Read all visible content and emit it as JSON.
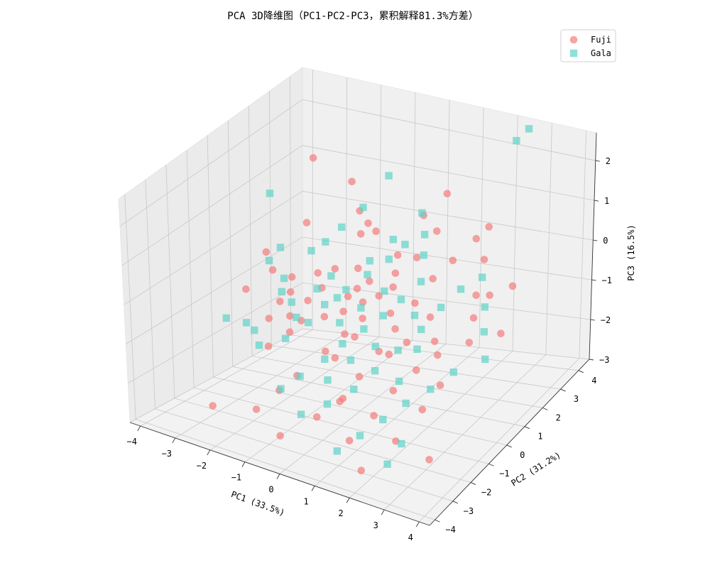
{
  "chart_data": {
    "type": "scatter",
    "projection": "3d",
    "title": "PCA 3D降维图（PC1-PC2-PC3，累积解释81.3%方差）",
    "xlabel": "PC1 (33.5%)",
    "ylabel": "PC2 (31.2%)",
    "zlabel": "PC3 (16.5%)",
    "xlim": [
      -4.3,
      4.3
    ],
    "ylim": [
      -4.3,
      4.6
    ],
    "zlim": [
      -3.0,
      2.7
    ],
    "xticks": [
      "−4",
      "−3",
      "−2",
      "−1",
      "0",
      "1",
      "2",
      "3",
      "4"
    ],
    "yticks": [
      "−4",
      "−3",
      "−2",
      "−1",
      "0",
      "1",
      "2",
      "3",
      "4"
    ],
    "zticks": [
      "−3",
      "−2",
      "−1",
      "0",
      "1",
      "2"
    ],
    "grid": true,
    "legend_position": "top-right",
    "series": [
      {
        "name": "Fuji",
        "marker": "circle",
        "color": "#f47c7c",
        "points": [
          [
            -2.8,
            2.6,
            1.6
          ],
          [
            -1.5,
            2.3,
            1.4
          ],
          [
            -0.8,
            1.9,
            0.7
          ],
          [
            -0.9,
            1.7,
            0.5
          ],
          [
            -0.7,
            1.2,
            -0.1
          ],
          [
            -1.7,
            0.9,
            -0.3
          ],
          [
            -2.3,
            1.4,
            0.6
          ],
          [
            -2.4,
            0.8,
            -0.5
          ],
          [
            -1.8,
            -0.4,
            -1.3
          ],
          [
            -0.5,
            0.8,
            -0.4
          ],
          [
            -3.4,
            0.2,
            -0.8
          ],
          [
            -3.2,
            0.9,
            -0.1
          ],
          [
            -2.9,
            0.7,
            -0.4
          ],
          [
            -2.3,
            0.0,
            -0.8
          ],
          [
            -2.4,
            -0.4,
            -1.1
          ],
          [
            -1.9,
            -0.2,
            -1.0
          ],
          [
            -2.2,
            -0.8,
            -1.6
          ],
          [
            -1.4,
            -0.5,
            -0.9
          ],
          [
            -1.6,
            0.2,
            -0.7
          ],
          [
            -2.1,
            0.2,
            -0.6
          ],
          [
            -1.3,
            0.4,
            -0.4
          ],
          [
            -0.9,
            -0.2,
            -0.8
          ],
          [
            -1.2,
            0.9,
            -0.1
          ],
          [
            -0.6,
            0.5,
            -0.5
          ],
          [
            -0.2,
            0.9,
            -0.2
          ],
          [
            0.4,
            1.3,
            0.4
          ],
          [
            0.5,
            1.0,
            0.1
          ],
          [
            0.3,
            0.5,
            -0.3
          ],
          [
            0.1,
            0.0,
            -0.7
          ],
          [
            -0.2,
            -0.4,
            -1.0
          ],
          [
            -0.6,
            -0.7,
            -1.4
          ],
          [
            -1.1,
            -1.3,
            -1.9
          ],
          [
            -1.4,
            -1.7,
            -2.2
          ],
          [
            -1.8,
            -2.2,
            -2.6
          ],
          [
            -2.9,
            -2.5,
            -2.7
          ],
          [
            -0.9,
            -2.6,
            -2.9
          ],
          [
            -0.1,
            -2.1,
            -2.4
          ],
          [
            0.3,
            -1.6,
            -2.1
          ],
          [
            0.6,
            -1.1,
            -1.6
          ],
          [
            0.9,
            -0.6,
            -1.1
          ],
          [
            1.1,
            -0.1,
            -0.7
          ],
          [
            1.4,
            0.4,
            -0.2
          ],
          [
            1.7,
            0.8,
            0.3
          ],
          [
            2.0,
            1.3,
            0.6
          ],
          [
            2.4,
            1.8,
            1.0
          ],
          [
            2.6,
            2.1,
            1.2
          ],
          [
            2.8,
            1.5,
            0.7
          ],
          [
            2.9,
            0.9,
            0.1
          ],
          [
            3.1,
            0.4,
            -0.2
          ],
          [
            3.3,
            -0.2,
            -0.5
          ],
          [
            3.4,
            0.7,
            0.3
          ],
          [
            3.9,
            1.0,
            0.5
          ],
          [
            4.0,
            0.2,
            -0.3
          ],
          [
            2.6,
            -0.6,
            -0.8
          ],
          [
            2.2,
            -1.0,
            -1.1
          ],
          [
            1.8,
            -1.5,
            -1.5
          ],
          [
            1.5,
            -2.0,
            -2.0
          ],
          [
            1.0,
            -2.4,
            -2.6
          ],
          [
            1.6,
            -2.9,
            -3.0
          ],
          [
            3.2,
            -2.2,
            -2.6
          ],
          [
            2.4,
            -2.5,
            -2.2
          ],
          [
            2.8,
            -1.8,
            -1.6
          ],
          [
            3.0,
            -1.2,
            -1.2
          ],
          [
            2.3,
            -0.2,
            -0.7
          ],
          [
            1.9,
            0.3,
            -0.4
          ],
          [
            1.6,
            -0.4,
            -0.8
          ],
          [
            1.3,
            -0.8,
            -1.0
          ],
          [
            0.8,
            0.2,
            -0.5
          ],
          [
            0.6,
            0.7,
            -0.1
          ],
          [
            0.9,
            1.4,
            0.4
          ],
          [
            1.2,
            1.9,
            0.9
          ],
          [
            0.7,
            2.1,
            1.1
          ],
          [
            1.1,
            2.6,
            1.5
          ],
          [
            -0.4,
            1.6,
            0.7
          ],
          [
            -1.1,
            2.0,
            0.9
          ],
          [
            0.0,
            0.2,
            -0.4
          ],
          [
            -0.4,
            -0.1,
            -0.6
          ],
          [
            0.2,
            -0.6,
            -0.9
          ],
          [
            -0.1,
            -1.1,
            -1.3
          ],
          [
            0.5,
            -1.8,
            -1.9
          ]
        ]
      },
      {
        "name": "Gala",
        "marker": "square",
        "color": "#5fd3c7",
        "points": [
          [
            2.2,
            4.2,
            2.3
          ],
          [
            2.5,
            4.3,
            2.6
          ],
          [
            -3.6,
            1.8,
            0.9
          ],
          [
            -0.6,
            2.6,
            1.6
          ],
          [
            -1.0,
            2.0,
            1.0
          ],
          [
            -1.4,
            1.6,
            0.6
          ],
          [
            -1.7,
            1.3,
            0.3
          ],
          [
            -2.0,
            1.1,
            0.1
          ],
          [
            -2.9,
            1.1,
            0.0
          ],
          [
            -3.0,
            0.7,
            -0.2
          ],
          [
            -2.4,
            0.4,
            -0.4
          ],
          [
            -2.3,
            0.1,
            -0.6
          ],
          [
            -1.9,
            -0.1,
            -0.7
          ],
          [
            -1.6,
            -0.4,
            -0.9
          ],
          [
            -1.7,
            -0.8,
            -1.3
          ],
          [
            -2.3,
            -1.1,
            -1.5
          ],
          [
            -2.6,
            -0.8,
            -1.3
          ],
          [
            -3.0,
            -0.5,
            -1.3
          ],
          [
            -3.7,
            -0.3,
            -1.4
          ],
          [
            -1.2,
            -0.5,
            -0.9
          ],
          [
            -1.0,
            0.0,
            -0.6
          ],
          [
            -0.6,
            0.4,
            -0.3
          ],
          [
            -0.2,
            0.8,
            0.0
          ],
          [
            0.2,
            1.2,
            0.3
          ],
          [
            0.5,
            1.5,
            0.6
          ],
          [
            0.9,
            1.8,
            0.8
          ],
          [
            1.1,
            1.4,
            0.5
          ],
          [
            1.3,
            0.9,
            0.1
          ],
          [
            1.0,
            0.4,
            -0.2
          ],
          [
            0.7,
            0.0,
            -0.5
          ],
          [
            0.3,
            -0.3,
            -0.8
          ],
          [
            -0.1,
            -0.7,
            -1.1
          ],
          [
            -0.4,
            -1.1,
            -1.4
          ],
          [
            -0.9,
            -1.5,
            -1.8
          ],
          [
            -1.3,
            -1.8,
            -2.1
          ],
          [
            -0.5,
            -2.2,
            -2.4
          ],
          [
            0.1,
            -1.9,
            -2.1
          ],
          [
            0.6,
            -1.4,
            -1.8
          ],
          [
            1.0,
            -1.0,
            -1.4
          ],
          [
            1.4,
            -0.5,
            -1.0
          ],
          [
            1.8,
            0.0,
            -0.6
          ],
          [
            2.1,
            0.5,
            -0.2
          ],
          [
            2.4,
            1.0,
            0.1
          ],
          [
            2.8,
            1.4,
            0.3
          ],
          [
            3.1,
            1.0,
            -0.2
          ],
          [
            3.3,
            0.6,
            -0.6
          ],
          [
            3.6,
            0.1,
            -1.0
          ],
          [
            2.9,
            -0.3,
            -1.3
          ],
          [
            2.5,
            -0.8,
            -1.6
          ],
          [
            2.0,
            -1.2,
            -1.9
          ],
          [
            1.6,
            -1.7,
            -2.2
          ],
          [
            1.2,
            -2.2,
            -2.5
          ],
          [
            0.8,
            -2.7,
            -2.8
          ],
          [
            2.2,
            -2.6,
            -2.8
          ],
          [
            2.4,
            -2.2,
            -2.4
          ],
          [
            1.9,
            -0.4,
            -0.9
          ],
          [
            1.5,
            0.2,
            -0.4
          ],
          [
            0.4,
            0.6,
            -0.2
          ],
          [
            0.0,
            0.1,
            -0.5
          ],
          [
            -0.4,
            -0.3,
            -0.8
          ],
          [
            -0.8,
            0.3,
            -0.5
          ],
          [
            -1.2,
            0.7,
            -0.2
          ],
          [
            -0.3,
            1.1,
            0.2
          ],
          [
            0.1,
            1.6,
            0.6
          ],
          [
            0.6,
            2.2,
            1.1
          ],
          [
            -0.1,
            -1.5,
            -1.7
          ],
          [
            0.3,
            -1.0,
            -1.3
          ],
          [
            0.8,
            -0.6,
            -1.0
          ],
          [
            1.7,
            -1.0,
            -1.5
          ],
          [
            -1.5,
            0.5,
            -0.5
          ]
        ]
      }
    ]
  },
  "legend": {
    "items": [
      {
        "label": "Fuji",
        "color": "#f47c7c",
        "marker": "circle"
      },
      {
        "label": "Gala",
        "color": "#5fd3c7",
        "marker": "square"
      }
    ]
  }
}
